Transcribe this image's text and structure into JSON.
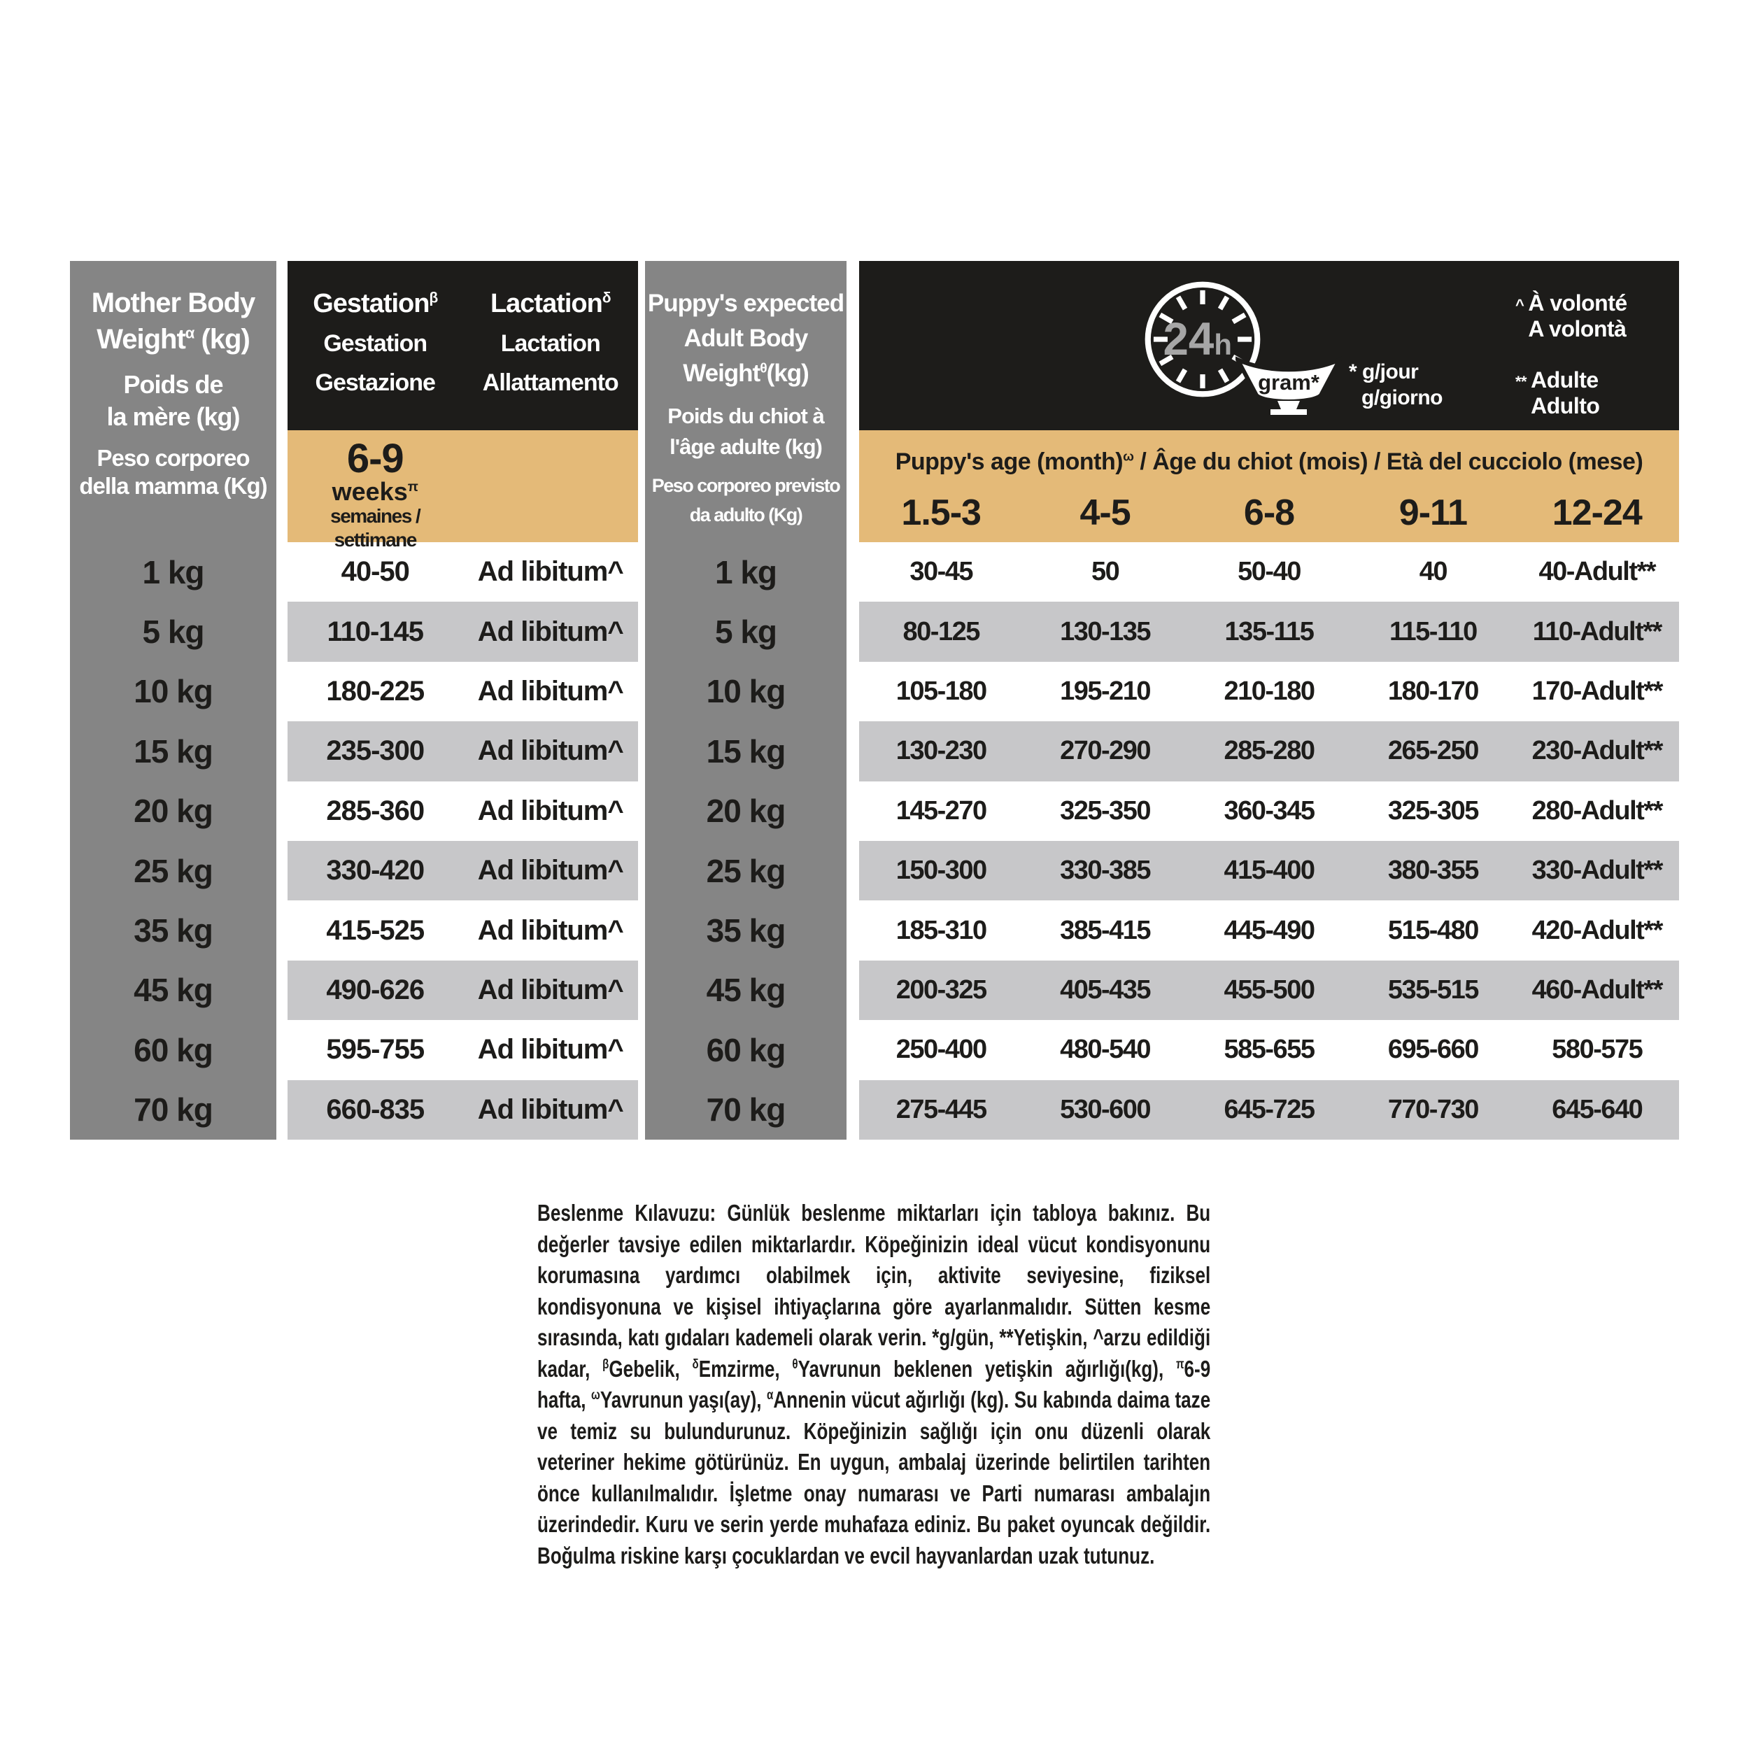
{
  "colors": {
    "panel_black": "#1d1c1a",
    "column_gray": "#858585",
    "row_light_gray": "#C7C7C9",
    "tan_gold": "#E4BA78",
    "clock_text_gray": "#a6a6a6"
  },
  "mother_column": {
    "title_en_1": "Mother Body",
    "title_en_2": "Weight",
    "title_en_sup": "α",
    "title_en_3": " (kg)",
    "title_fr_1": "Poids de",
    "title_fr_2": "la mère (kg)",
    "title_it_1": "Peso corporeo",
    "title_it_2": "della mamma (Kg)",
    "weights": [
      "1 kg",
      "5 kg",
      "10 kg",
      "15 kg",
      "20 kg",
      "25 kg",
      "35 kg",
      "45 kg",
      "60 kg",
      "70 kg"
    ]
  },
  "gestation_lactation": {
    "gestation_header": {
      "en": "Gestation",
      "sup": "β",
      "fr": "Gestation",
      "it": "Gestazione"
    },
    "lactation_header": {
      "en": "Lactation",
      "sup": "δ",
      "fr": "Lactation",
      "it": "Allattamento"
    },
    "subheader": {
      "range": "6-9",
      "unit": "weeks",
      "unit_sup": "π",
      "langs": "semaines / settimane"
    },
    "rows": [
      {
        "gestation": "40-50",
        "lactation": "Ad libitum^"
      },
      {
        "gestation": "110-145",
        "lactation": "Ad libitum^"
      },
      {
        "gestation": "180-225",
        "lactation": "Ad libitum^"
      },
      {
        "gestation": "235-300",
        "lactation": "Ad libitum^"
      },
      {
        "gestation": "285-360",
        "lactation": "Ad libitum^"
      },
      {
        "gestation": "330-420",
        "lactation": "Ad libitum^"
      },
      {
        "gestation": "415-525",
        "lactation": "Ad libitum^"
      },
      {
        "gestation": "490-626",
        "lactation": "Ad libitum^"
      },
      {
        "gestation": "595-755",
        "lactation": "Ad libitum^"
      },
      {
        "gestation": "660-835",
        "lactation": "Ad libitum^"
      }
    ]
  },
  "puppy_column": {
    "title_en_1": "Puppy's expected",
    "title_en_2": "Adult Body",
    "title_en_3": "Weight",
    "title_en_sup": "θ",
    "title_en_4": "(kg)",
    "title_fr_1": "Poids du chiot à",
    "title_fr_2": "l'âge adulte (kg)",
    "title_it_1": "Peso corporeo previsto",
    "title_it_2": "da adulto (Kg)",
    "weights": [
      "1 kg",
      "5 kg",
      "10 kg",
      "15 kg",
      "20 kg",
      "25 kg",
      "35 kg",
      "45 kg",
      "60 kg",
      "70 kg"
    ]
  },
  "feeding_table": {
    "clock_label": "24",
    "clock_label_unit": "h",
    "bowl_label": "gram*",
    "legend": {
      "gjour_line1": "* g/jour",
      "gjour_line2": "g/giorno",
      "volonte_sup": "^",
      "volonte_fr": "À volonté",
      "volonte_it": "A volontà",
      "adult_sup": "**",
      "adult_fr": "Adulte",
      "adult_it": "Adulto"
    },
    "age_header": {
      "en": "Puppy's age (month)",
      "sup": "ω",
      "rest": " / Âge du chiot (mois) / Età del cucciolo (mese)"
    },
    "ages": [
      "1.5-3",
      "4-5",
      "6-8",
      "9-11",
      "12-24"
    ],
    "rows": [
      [
        "30-45",
        "50",
        "50-40",
        "40",
        "40-Adult**"
      ],
      [
        "80-125",
        "130-135",
        "135-115",
        "115-110",
        "110-Adult**"
      ],
      [
        "105-180",
        "195-210",
        "210-180",
        "180-170",
        "170-Adult**"
      ],
      [
        "130-230",
        "270-290",
        "285-280",
        "265-250",
        "230-Adult**"
      ],
      [
        "145-270",
        "325-350",
        "360-345",
        "325-305",
        "280-Adult**"
      ],
      [
        "150-300",
        "330-385",
        "415-400",
        "380-355",
        "330-Adult**"
      ],
      [
        "185-310",
        "385-415",
        "445-490",
        "515-480",
        "420-Adult**"
      ],
      [
        "200-325",
        "405-435",
        "455-500",
        "535-515",
        "460-Adult**"
      ],
      [
        "250-400",
        "480-540",
        "585-655",
        "695-660",
        "580-575"
      ],
      [
        "275-445",
        "530-600",
        "645-725",
        "770-730",
        "645-640"
      ]
    ]
  },
  "footnote": {
    "segments": [
      {
        "b": "Beslenme Kılavuzu:"
      },
      {
        "t": " Günlük beslenme miktarları için tabloya bakınız. Bu değerler tavsiye edilen miktarlardır. Köpeğinizin ideal vücut kondisyonunu korumasına yardımcı olabilmek için, aktivite seviyesine, fiziksel kondisyonuna ve kişisel ihtiyaçlarına göre ayarlanmalıdır. Sütten kesme sırasında, katı gıdaları kademeli olarak verin. *g/gün, **Yetişkin, ^arzu edildiği kadar, "
      },
      {
        "s": "β"
      },
      {
        "t": "Gebelik, "
      },
      {
        "s": "δ"
      },
      {
        "t": "Emzirme, "
      },
      {
        "s": "θ"
      },
      {
        "t": "Yavrunun beklenen yetişkin ağırlığı(kg), "
      },
      {
        "s": "π"
      },
      {
        "t": "6-9 hafta, "
      },
      {
        "s": "ω"
      },
      {
        "t": "Yavrunun yaşı(ay), "
      },
      {
        "s": "α"
      },
      {
        "t": "Annenin vücut ağırlığı (kg). Su kabında daima taze ve temiz su bulundurunuz. Köpeğinizin sağlığı için onu düzenli olarak veteriner hekime götürünüz. En uygun, ambalaj üzerinde belirtilen tarihten önce kullanılmalıdır. İşletme onay numarası ve Parti numarası ambalajın üzerindedir. Kuru ve serin yerde muhafaza ediniz. Bu paket oyuncak değildir. Boğulma riskine karşı çocuklardan ve evcil hayvanlardan uzak tutunuz."
      }
    ]
  }
}
